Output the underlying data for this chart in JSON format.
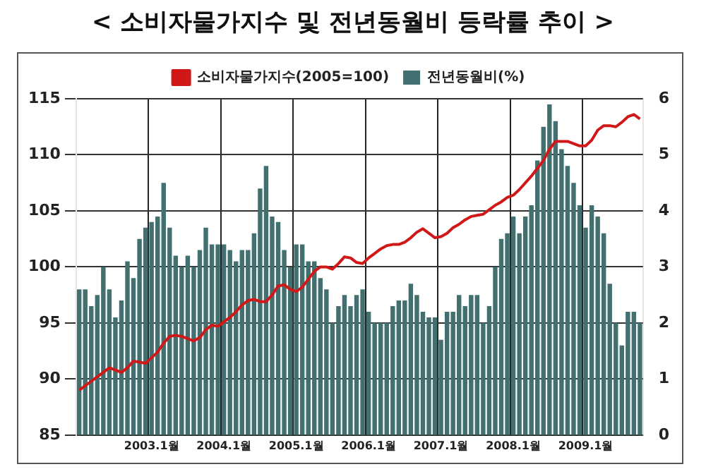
{
  "chart_data": {
    "type": "bar",
    "title": "< 소비자물가지수 및 전년동월비 등락률 추이 >",
    "categories": [
      null,
      null,
      null,
      null,
      null,
      null,
      null,
      null,
      null,
      null,
      null,
      null,
      "2003.1월",
      null,
      null,
      null,
      null,
      null,
      null,
      null,
      null,
      null,
      null,
      null,
      "2004.1월",
      null,
      null,
      null,
      null,
      null,
      null,
      null,
      null,
      null,
      null,
      null,
      "2005.1월",
      null,
      null,
      null,
      null,
      null,
      null,
      null,
      null,
      null,
      null,
      null,
      "2006.1월",
      null,
      null,
      null,
      null,
      null,
      null,
      null,
      null,
      null,
      null,
      null,
      "2007.1월",
      null,
      null,
      null,
      null,
      null,
      null,
      null,
      null,
      null,
      null,
      null,
      "2008.1월",
      null,
      null,
      null,
      null,
      null,
      null,
      null,
      null,
      null,
      null,
      null,
      "2009.1월",
      null,
      null,
      null,
      null,
      null,
      null,
      null,
      null,
      null
    ],
    "series": [
      {
        "name": "소비자물가지수(2005=100)",
        "type": "line",
        "axis": "y",
        "color": "#d01818",
        "values": [
          89.0,
          89.4,
          89.8,
          90.2,
          90.6,
          91.0,
          90.8,
          90.6,
          91.0,
          91.6,
          91.5,
          91.4,
          91.9,
          92.4,
          93.2,
          93.8,
          93.9,
          93.8,
          93.6,
          93.4,
          93.7,
          94.4,
          94.8,
          94.7,
          95.1,
          95.5,
          96.0,
          96.6,
          97.0,
          97.1,
          96.9,
          96.9,
          97.5,
          98.3,
          98.4,
          98.0,
          97.8,
          98.2,
          98.9,
          99.6,
          100.0,
          100.0,
          99.8,
          100.3,
          100.9,
          100.8,
          100.4,
          100.3,
          100.8,
          101.2,
          101.6,
          101.9,
          102.0,
          102.0,
          102.2,
          102.6,
          103.1,
          103.4,
          103.0,
          102.6,
          102.7,
          103.0,
          103.5,
          103.8,
          104.2,
          104.5,
          104.6,
          104.7,
          105.1,
          105.5,
          105.8,
          106.2,
          106.4,
          106.9,
          107.5,
          108.1,
          108.8,
          109.5,
          110.5,
          111.2,
          111.2,
          111.2,
          111.0,
          110.8,
          110.8,
          111.3,
          112.2,
          112.6,
          112.6,
          112.5,
          112.9,
          113.4,
          113.6,
          113.2
        ]
      },
      {
        "name": "전년동월비(%)",
        "axis": "y2",
        "color": "#426f6f",
        "values": [
          2.6,
          2.6,
          2.3,
          2.5,
          3.0,
          2.6,
          2.1,
          2.4,
          3.1,
          2.8,
          3.5,
          3.7,
          3.8,
          3.9,
          4.5,
          3.7,
          3.2,
          3.0,
          3.2,
          3.0,
          3.3,
          3.7,
          3.4,
          3.4,
          3.4,
          3.3,
          3.1,
          3.3,
          3.3,
          3.6,
          4.4,
          4.8,
          3.9,
          3.8,
          3.3,
          3.0,
          3.4,
          3.4,
          3.1,
          3.1,
          2.8,
          2.6,
          2.0,
          2.3,
          2.5,
          2.3,
          2.5,
          2.6,
          2.2,
          2.0,
          2.0,
          2.0,
          2.3,
          2.4,
          2.4,
          2.7,
          2.5,
          2.2,
          2.1,
          2.1,
          1.7,
          2.2,
          2.2,
          2.5,
          2.3,
          2.5,
          2.5,
          2.0,
          2.3,
          3.0,
          3.5,
          3.6,
          3.9,
          3.6,
          3.9,
          4.1,
          4.9,
          5.5,
          5.9,
          5.6,
          5.1,
          4.8,
          4.5,
          4.1,
          3.7,
          4.1,
          3.9,
          3.6,
          2.7,
          2.0,
          1.6,
          2.2,
          2.2,
          2.0
        ]
      }
    ],
    "ylim": [
      85,
      115
    ],
    "yticks": [
      85,
      90,
      95,
      100,
      105,
      110,
      115
    ],
    "y2lim": [
      0,
      6
    ],
    "y2ticks": [
      0,
      1,
      2,
      3,
      4,
      5,
      6
    ],
    "grid": true,
    "legend": "top"
  }
}
